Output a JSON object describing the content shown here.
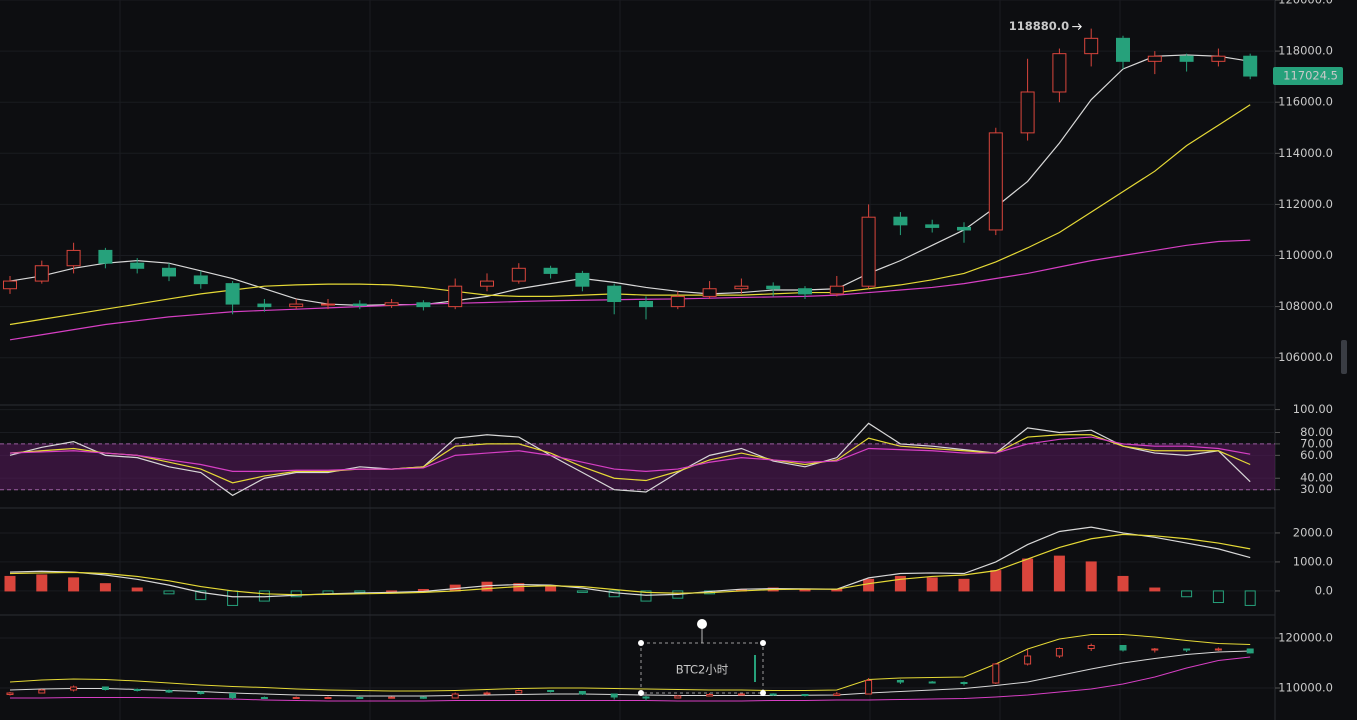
{
  "chart_data": [
    {
      "type": "candlestick",
      "ylim": [
        104150,
        120000
      ],
      "yticks": [
        {
          "value": 106000,
          "label": "106000.0"
        },
        {
          "value": 108000,
          "label": "108000.0"
        },
        {
          "value": 110000,
          "label": "110000.0"
        },
        {
          "value": 112000,
          "label": "112000.0"
        },
        {
          "value": 114000,
          "label": "114000.0"
        },
        {
          "value": 116000,
          "label": "116000.0"
        },
        {
          "value": 118000,
          "label": "118000.0"
        },
        {
          "value": 120000,
          "label": "120000.0"
        }
      ],
      "up_color": "#d9453c",
      "down_color": "#26a17b",
      "open": [
        108700,
        109000,
        109600,
        110200,
        109700,
        109500,
        109200,
        108900,
        108100,
        108000,
        108100,
        108100,
        108050,
        108150,
        108000,
        108800,
        109000,
        109500,
        109300,
        108800,
        108200,
        108000,
        108400,
        108700,
        108800,
        108700,
        108500,
        108800,
        111500,
        111200,
        111100,
        111000,
        114800,
        116400,
        117900,
        118500,
        117600,
        117800,
        117600,
        117800
      ],
      "high": [
        109200,
        109800,
        110500,
        110300,
        109900,
        109700,
        109400,
        109000,
        108300,
        108300,
        108300,
        108250,
        108300,
        108250,
        109100,
        109300,
        109700,
        109600,
        109400,
        108900,
        108400,
        108600,
        109000,
        109100,
        108950,
        108800,
        109200,
        112000,
        111700,
        111400,
        111300,
        115000,
        117700,
        118100,
        118880,
        118600,
        118000,
        117900,
        118100,
        117900
      ],
      "low": [
        108500,
        108900,
        109300,
        109500,
        109300,
        109000,
        108700,
        107700,
        107800,
        107900,
        107900,
        107900,
        107950,
        107850,
        107900,
        108600,
        108900,
        109100,
        108600,
        107700,
        107500,
        107900,
        108300,
        108500,
        108400,
        108300,
        108400,
        108700,
        110800,
        110900,
        110500,
        110800,
        114500,
        116000,
        117400,
        117300,
        117100,
        117200,
        117400,
        116900
      ],
      "close": [
        109000,
        109600,
        110200,
        109700,
        109500,
        109200,
        108900,
        108100,
        108000,
        108100,
        108100,
        108050,
        108150,
        108000,
        108800,
        109000,
        109500,
        109300,
        108800,
        108200,
        108000,
        108400,
        108700,
        108800,
        108700,
        108500,
        108800,
        111500,
        111200,
        111100,
        111000,
        114800,
        116400,
        117900,
        118500,
        117600,
        117800,
        117600,
        117800,
        117024.5
      ],
      "series": [
        {
          "color": "#d8d8d8",
          "values": [
            109000,
            109200,
            109500,
            109700,
            109800,
            109700,
            109400,
            109100,
            108700,
            108300,
            108100,
            108050,
            108080,
            108080,
            108230,
            108400,
            108700,
            108900,
            109100,
            108950,
            108750,
            108600,
            108500,
            108550,
            108650,
            108650,
            108700,
            109300,
            109800,
            110400,
            111000,
            111900,
            112900,
            114400,
            116100,
            117300,
            117800,
            117850,
            117800,
            117600
          ]
        },
        {
          "color": "#e5d936",
          "values": [
            107300,
            107500,
            107700,
            107900,
            108100,
            108300,
            108500,
            108650,
            108800,
            108850,
            108880,
            108880,
            108850,
            108750,
            108600,
            108450,
            108400,
            108400,
            108450,
            108500,
            108450,
            108450,
            108450,
            108450,
            108500,
            108550,
            108550,
            108700,
            108850,
            109050,
            109300,
            109750,
            110300,
            110900,
            111700,
            112500,
            113300,
            114300,
            115100,
            115900
          ]
        },
        {
          "color": "#d63fc4",
          "values": [
            106700,
            106900,
            107100,
            107300,
            107450,
            107600,
            107700,
            107800,
            107850,
            107900,
            107950,
            108000,
            108050,
            108100,
            108130,
            108160,
            108200,
            108230,
            108250,
            108270,
            108290,
            108300,
            108330,
            108360,
            108380,
            108400,
            108450,
            108550,
            108650,
            108750,
            108900,
            109100,
            109300,
            109550,
            109800,
            110000,
            110200,
            110400,
            110550,
            110600
          ]
        }
      ],
      "high_label": {
        "value": 118880,
        "label": "118880.0"
      },
      "last_price": 117024.5
    },
    {
      "type": "line",
      "ylim": [
        14,
        104
      ],
      "yticks": [
        {
          "value": 30,
          "label": "30.00"
        },
        {
          "value": 40,
          "label": "40.00"
        },
        {
          "value": 60,
          "label": "60.00"
        },
        {
          "value": 70,
          "label": "70.00"
        },
        {
          "value": 80,
          "label": "80.00"
        },
        {
          "value": 100,
          "label": "100.00"
        }
      ],
      "band": [
        30,
        70
      ],
      "band_color": "#5a1a5c",
      "series": [
        {
          "color": "#d8d8d8",
          "values": [
            60,
            67,
            72,
            60,
            58,
            50,
            45,
            25,
            40,
            45,
            45,
            50,
            48,
            50,
            75,
            78,
            76,
            60,
            45,
            30,
            28,
            45,
            60,
            66,
            55,
            50,
            58,
            88,
            70,
            68,
            65,
            62,
            84,
            80,
            82,
            68,
            62,
            60,
            64,
            37
          ]
        },
        {
          "color": "#e5d936",
          "values": [
            62,
            64,
            66,
            62,
            60,
            54,
            48,
            36,
            42,
            46,
            46,
            48,
            48,
            50,
            68,
            70,
            70,
            62,
            50,
            40,
            38,
            46,
            56,
            62,
            56,
            52,
            56,
            75,
            68,
            66,
            64,
            62,
            76,
            78,
            78,
            68,
            64,
            64,
            64,
            52
          ]
        },
        {
          "color": "#d63fc4",
          "values": [
            62,
            63,
            64,
            62,
            60,
            56,
            52,
            46,
            46,
            47,
            47,
            48,
            48,
            49,
            60,
            62,
            64,
            60,
            54,
            48,
            46,
            48,
            54,
            58,
            56,
            54,
            55,
            66,
            65,
            64,
            62,
            62,
            70,
            74,
            76,
            70,
            68,
            68,
            66,
            61
          ]
        }
      ]
    },
    {
      "type": "combo",
      "ylim": [
        -830,
        2860
      ],
      "yticks": [
        {
          "value": 0,
          "label": "0.0"
        },
        {
          "value": 1000,
          "label": "1000.0"
        },
        {
          "value": 2000,
          "label": "2000.0"
        }
      ],
      "series": [
        {
          "kind": "bar",
          "color": "#d9453c",
          "negative_color": "#26a17b",
          "values": [
            500,
            550,
            450,
            250,
            100,
            -100,
            -300,
            -500,
            -350,
            -200,
            -100,
            -50,
            0,
            50,
            200,
            300,
            250,
            150,
            -50,
            -200,
            -350,
            -250,
            -100,
            50,
            100,
            50,
            50,
            400,
            500,
            450,
            400,
            700,
            1100,
            1200,
            1000,
            500,
            100,
            -200,
            -400,
            -500
          ]
        },
        {
          "kind": "line",
          "color": "#d8d8d8",
          "values": [
            650,
            680,
            650,
            550,
            400,
            200,
            -50,
            -200,
            -200,
            -150,
            -100,
            -70,
            -50,
            -20,
            80,
            180,
            220,
            200,
            100,
            -60,
            -150,
            -120,
            -20,
            60,
            80,
            70,
            60,
            450,
            600,
            620,
            600,
            1000,
            1600,
            2050,
            2200,
            2000,
            1850,
            1650,
            1450,
            1150
          ]
        },
        {
          "kind": "line",
          "color": "#e5d936",
          "values": [
            600,
            620,
            640,
            600,
            500,
            350,
            150,
            0,
            -100,
            -130,
            -120,
            -100,
            -80,
            -50,
            0,
            80,
            150,
            180,
            150,
            50,
            -50,
            -80,
            -60,
            0,
            50,
            60,
            60,
            250,
            400,
            500,
            550,
            700,
            1100,
            1500,
            1800,
            1950,
            1900,
            1800,
            1650,
            1450
          ]
        }
      ]
    },
    {
      "type": "bands",
      "ylim": [
        103600,
        124600
      ],
      "yticks": [
        {
          "value": 110000,
          "label": "110000.0"
        },
        {
          "value": 120000,
          "label": "120000.0"
        }
      ],
      "annotation": "BTC2小时",
      "annotation_color": "#e8352a",
      "series": [
        {
          "color": "#e5d936",
          "values": [
            111200,
            111600,
            111800,
            111700,
            111400,
            111000,
            110600,
            110300,
            110100,
            109800,
            109600,
            109500,
            109400,
            109400,
            109500,
            109700,
            109900,
            110000,
            110000,
            109900,
            109800,
            109700,
            109600,
            109600,
            109500,
            109500,
            109600,
            111700,
            112000,
            112100,
            112200,
            114800,
            117800,
            119800,
            120700,
            120700,
            120200,
            119500,
            118900,
            118700
          ]
        },
        {
          "color": "#d8d8d8",
          "values": [
            109600,
            109800,
            109900,
            109900,
            109700,
            109500,
            109300,
            109000,
            108800,
            108600,
            108500,
            108400,
            108400,
            108400,
            108500,
            108600,
            108700,
            108800,
            108800,
            108700,
            108600,
            108500,
            108500,
            108500,
            108500,
            108550,
            108600,
            109000,
            109300,
            109600,
            109900,
            110500,
            111200,
            112500,
            113800,
            115000,
            115900,
            116700,
            117200,
            117400
          ]
        },
        {
          "color": "#d63fc4",
          "values": [
            108000,
            108000,
            108100,
            108100,
            108100,
            108000,
            107900,
            107800,
            107600,
            107500,
            107400,
            107400,
            107400,
            107400,
            107500,
            107500,
            107500,
            107500,
            107500,
            107500,
            107500,
            107400,
            107400,
            107400,
            107500,
            107500,
            107600,
            107600,
            107700,
            107800,
            107900,
            108200,
            108600,
            109200,
            109800,
            110800,
            112200,
            114000,
            115500,
            116200
          ]
        }
      ]
    }
  ]
}
